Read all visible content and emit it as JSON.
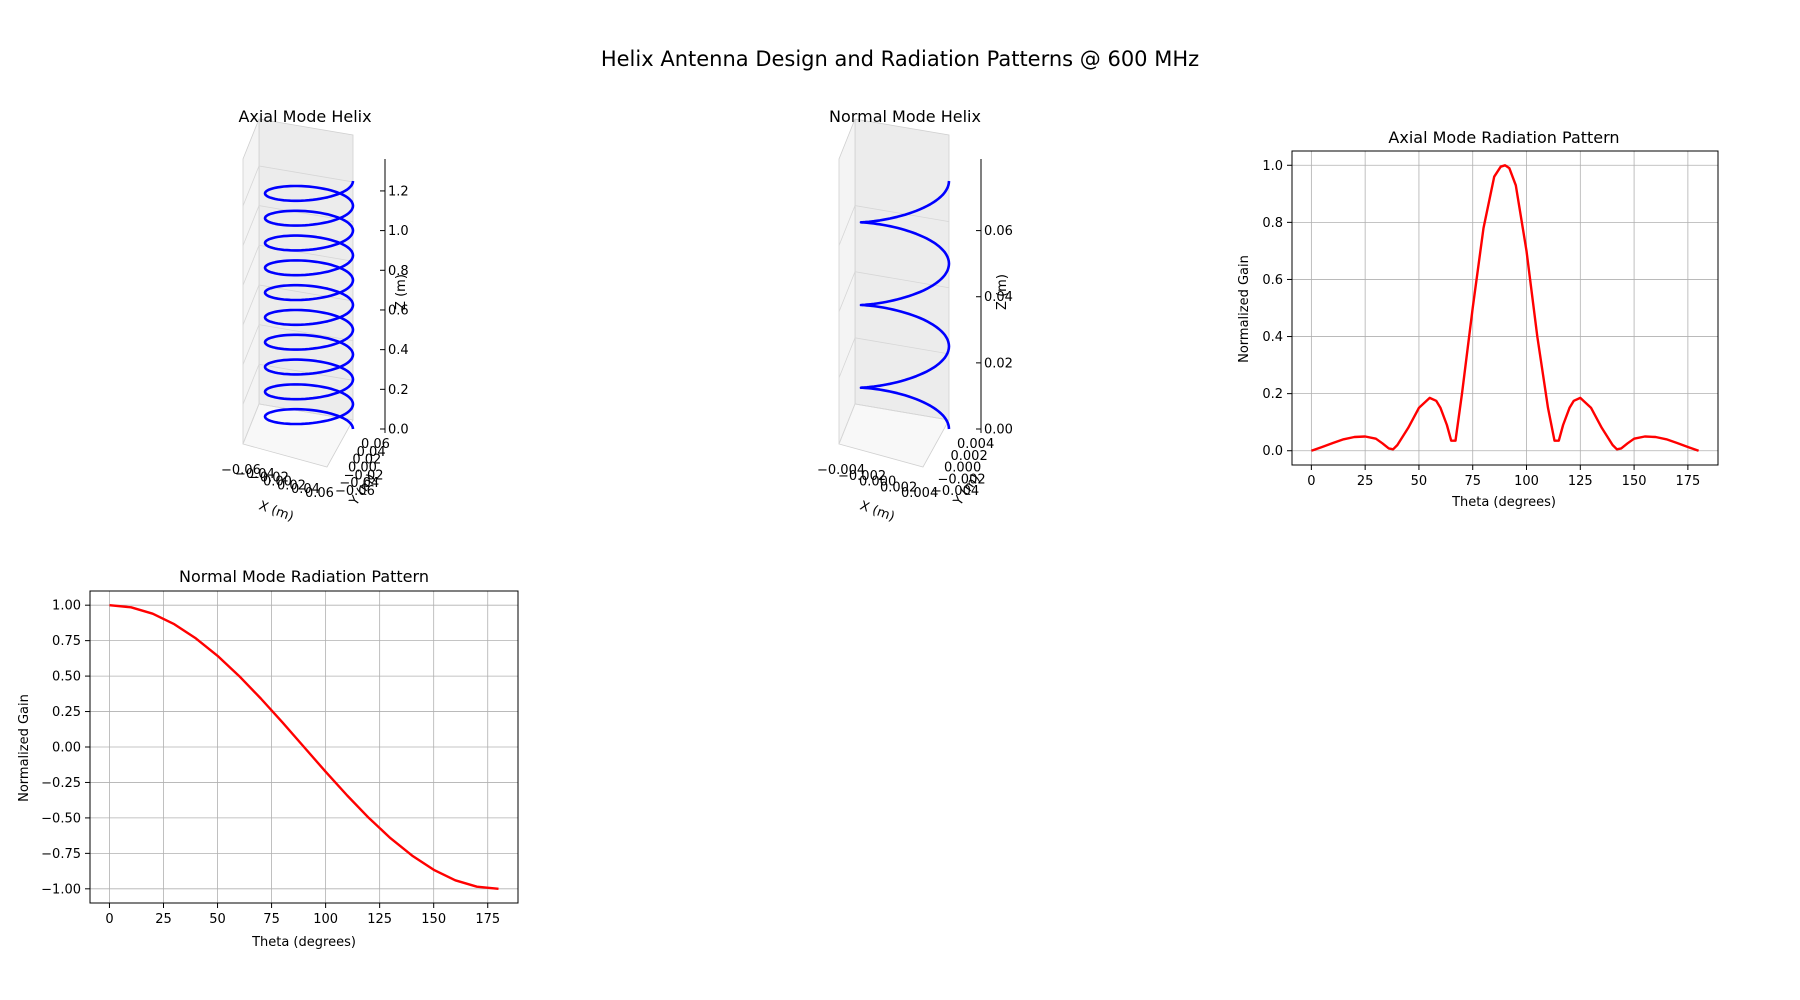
{
  "figure": {
    "title": "Helix Antenna Design and Radiation Patterns @ 600 MHz"
  },
  "colors": {
    "helix": "#0000ff",
    "pattern": "#ff0000",
    "grid": "#b0b0b0",
    "pane": "#f2f2f2"
  },
  "chart_data": [
    {
      "type": "line",
      "projection": "3d",
      "title": "Axial Mode Helix",
      "xlabel": "X (m)",
      "ylabel": "Y (m)",
      "zlabel": "Z (m)",
      "xlim": [
        -0.06,
        0.06
      ],
      "ylim": [
        -0.06,
        0.06
      ],
      "zlim": [
        0,
        1.25
      ],
      "x_ticks": [
        "−0.06",
        "−0.04",
        "−0.02",
        "0.00",
        "0.02",
        "0.04",
        "0.06"
      ],
      "y_ticks": [
        "−0.06",
        "−0.04",
        "−0.02",
        "0.00",
        "0.02",
        "0.04",
        "0.06"
      ],
      "z_ticks": [
        "0.0",
        "0.2",
        "0.4",
        "0.6",
        "0.8",
        "1.0",
        "1.2"
      ],
      "helix": {
        "radius": 0.06,
        "turns": 10,
        "z_min": 0,
        "z_max": 1.25
      },
      "series": [
        {
          "color": "#0000ff"
        }
      ]
    },
    {
      "type": "line",
      "projection": "3d",
      "title": "Normal Mode Helix",
      "xlabel": "X (m)",
      "ylabel": "Y (m)",
      "zlabel": "Z (m)",
      "xlim": [
        -0.004,
        0.004
      ],
      "ylim": [
        -0.004,
        0.004
      ],
      "zlim": [
        0,
        0.075
      ],
      "x_ticks": [
        "−0.004",
        "−0.002",
        "0.000",
        "0.002",
        "0.004"
      ],
      "y_ticks": [
        "−0.004",
        "−0.002",
        "0.000",
        "0.002",
        "0.004"
      ],
      "z_ticks": [
        "0.00",
        "0.02",
        "0.04",
        "0.06"
      ],
      "helix": {
        "radius": 0.004,
        "turns": 3,
        "z_min": 0,
        "z_max": 0.075
      },
      "series": [
        {
          "color": "#0000ff"
        }
      ]
    },
    {
      "type": "line",
      "title": "Axial Mode Radiation Pattern",
      "xlabel": "Theta (degrees)",
      "ylabel": "Normalized Gain",
      "xlim": [
        -9,
        189
      ],
      "ylim": [
        -0.05,
        1.05
      ],
      "grid": true,
      "x_ticks": [
        0,
        25,
        50,
        75,
        100,
        125,
        150,
        175
      ],
      "y_ticks": [
        0.0,
        0.2,
        0.4,
        0.6,
        0.8,
        1.0
      ],
      "series": [
        {
          "color": "#ff0000",
          "x": [
            0,
            5,
            10,
            15,
            20,
            25,
            30,
            33,
            36,
            38,
            40,
            45,
            50,
            55,
            58,
            60,
            63,
            65,
            67,
            70,
            75,
            80,
            85,
            88,
            90,
            92,
            95,
            100,
            105,
            110,
            113,
            115,
            117,
            120,
            122,
            125,
            130,
            135,
            140,
            142,
            144,
            147,
            150,
            155,
            160,
            165,
            170,
            175,
            180
          ],
          "y": [
            0.0,
            0.013,
            0.027,
            0.04,
            0.048,
            0.05,
            0.042,
            0.026,
            0.008,
            0.005,
            0.02,
            0.08,
            0.15,
            0.185,
            0.175,
            0.15,
            0.09,
            0.035,
            0.035,
            0.2,
            0.5,
            0.78,
            0.96,
            0.995,
            1.0,
            0.99,
            0.93,
            0.7,
            0.4,
            0.15,
            0.035,
            0.035,
            0.09,
            0.15,
            0.175,
            0.185,
            0.15,
            0.08,
            0.02,
            0.005,
            0.008,
            0.026,
            0.042,
            0.05,
            0.048,
            0.04,
            0.027,
            0.013,
            0.0
          ]
        }
      ]
    },
    {
      "type": "line",
      "title": "Normal Mode Radiation Pattern",
      "xlabel": "Theta (degrees)",
      "ylabel": "Normalized Gain",
      "xlim": [
        -9,
        189
      ],
      "ylim": [
        -1.1,
        1.1
      ],
      "grid": true,
      "x_ticks": [
        0,
        25,
        50,
        75,
        100,
        125,
        150,
        175
      ],
      "y_ticks": [
        -1.0,
        -0.75,
        -0.5,
        -0.25,
        0.0,
        0.25,
        0.5,
        0.75,
        1.0
      ],
      "series": [
        {
          "color": "#ff0000",
          "x": [
            0,
            10,
            20,
            30,
            40,
            50,
            60,
            70,
            80,
            90,
            100,
            110,
            120,
            130,
            140,
            150,
            160,
            170,
            180
          ],
          "y": [
            1.0,
            0.985,
            0.94,
            0.866,
            0.766,
            0.643,
            0.5,
            0.342,
            0.174,
            0.0,
            -0.174,
            -0.342,
            -0.5,
            -0.643,
            -0.766,
            -0.866,
            -0.94,
            -0.985,
            -1.0
          ]
        }
      ]
    }
  ]
}
